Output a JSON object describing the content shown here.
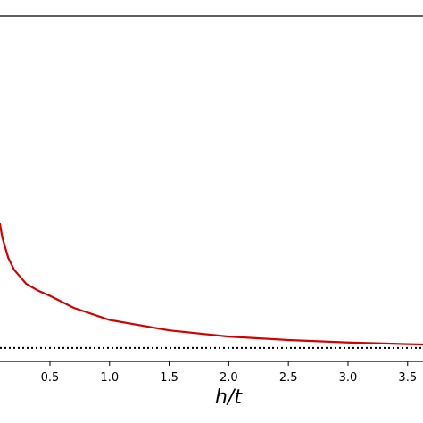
{
  "chart_data": {
    "type": "line",
    "xlabel": "h/t",
    "x": [
      0.08,
      0.1,
      0.15,
      0.2,
      0.3,
      0.4,
      0.5,
      0.7,
      1.0,
      1.5,
      2.0,
      2.5,
      3.0,
      3.5,
      3.63
    ],
    "series": [
      {
        "color": "#d40000",
        "values": [
          0.4,
          0.36,
          0.3,
          0.265,
          0.225,
          0.205,
          0.19,
          0.155,
          0.12,
          0.09,
          0.072,
          0.062,
          0.055,
          0.05,
          0.049
        ]
      }
    ],
    "hline": {
      "value": 0.039,
      "color": "#000000",
      "style": "dotted"
    },
    "xlim": [
      0.081,
      3.629
    ],
    "ylim": [
      0,
      1
    ],
    "xticks": [
      0.5,
      {
        "value": 1.0,
        "label": "1.0"
      },
      1.5,
      {
        "value": 2.0,
        "label": "2.0"
      },
      2.5,
      {
        "value": 3.0,
        "label": "3.0"
      },
      3.5
    ]
  }
}
